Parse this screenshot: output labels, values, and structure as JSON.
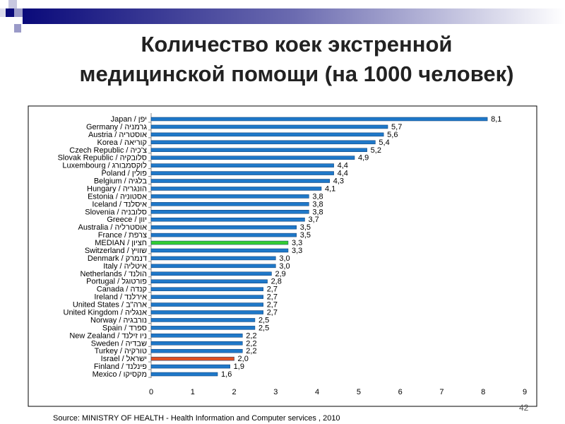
{
  "slide": {
    "title_line1": "Количество коек экстренной",
    "title_line2": "медицинской помощи (на 1000 человек)",
    "source": "Source: MINISTRY OF HEALTH - Health Information and Computer services , 2010",
    "page_number": "42"
  },
  "colors": {
    "bar": "#1f78c8",
    "median": "#33cc33",
    "israel": "#e05020"
  },
  "chart_data": {
    "type": "bar",
    "orientation": "horizontal",
    "title": "",
    "xlabel": "",
    "ylabel": "",
    "xlim": [
      0,
      9
    ],
    "xticks": [
      "0",
      "1",
      "2",
      "3",
      "4",
      "5",
      "6",
      "7",
      "8",
      "9"
    ],
    "categories": [
      "Japan / יפן",
      "Germany / גרמניה",
      "Austria / אוסטריה",
      "Korea / קוריאה",
      "Czech Republic / צ'כיה",
      "Slovak Republic / סלובקיה",
      "Luxembourg / לוקסמבורג",
      "Poland / פולין",
      "Belgium / בלגיה",
      "Hungary / הונגריה",
      "Estonia / אסטוניה",
      "Iceland / איסלנד",
      "Slovenia / סלובניה",
      "Greece / יוון",
      "Australia / אוסטרליה",
      "France / צרפת",
      "MEDIAN / חציון",
      "Switzerland / שוויץ",
      "Denmark / דנמרק",
      "Italy / איטליה",
      "Netherlands / הולנד",
      "Portugal / פורטוגל",
      "Canada / קנדה",
      "Ireland / אירלנד",
      "United States / ארה\"ב",
      "United Kingdom / אנגליה",
      "Norway / נורבגיה",
      "Spain / ספרד",
      "New Zealand / ניו זילנד",
      "Sweden / שבדיה",
      "Turkey / טורקיה",
      "Israel / ישראל",
      "Finland / פינלנד",
      "Mexico / מקסיקו"
    ],
    "values": [
      8.1,
      5.7,
      5.6,
      5.4,
      5.2,
      4.9,
      4.4,
      4.4,
      4.3,
      4.1,
      3.8,
      3.8,
      3.8,
      3.7,
      3.5,
      3.5,
      3.3,
      3.3,
      3.0,
      3.0,
      2.9,
      2.8,
      2.7,
      2.7,
      2.7,
      2.7,
      2.5,
      2.5,
      2.2,
      2.2,
      2.2,
      2.0,
      1.9,
      1.6
    ],
    "data_labels": [
      "8,1",
      "5,7",
      "5,6",
      "5,4",
      "5,2",
      "4,9",
      "4,4",
      "4,4",
      "4,3",
      "4,1",
      "3,8",
      "3,8",
      "3,8",
      "3,7",
      "3,5",
      "3,5",
      "3,3",
      "3,3",
      "3,0",
      "3,0",
      "2,9",
      "2,8",
      "2,7",
      "2,7",
      "2,7",
      "2,7",
      "2,5",
      "2,5",
      "2,2",
      "2,2",
      "2,2",
      "2,0",
      "1,9",
      "1,6"
    ],
    "highlight": {
      "MEDIAN / חציון": "median",
      "Israel / ישראל": "israel"
    }
  }
}
